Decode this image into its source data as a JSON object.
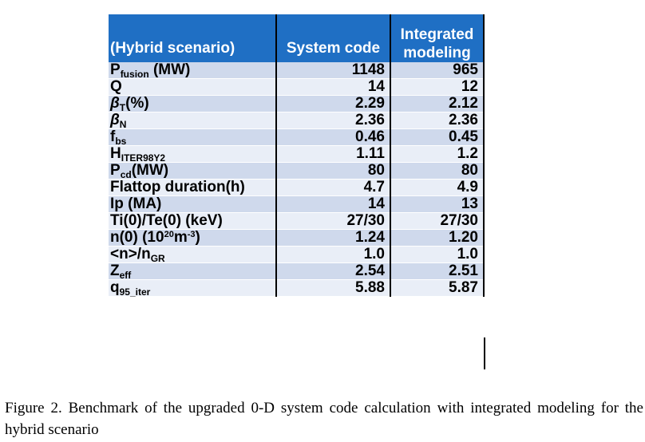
{
  "table": {
    "headers": [
      "(Hybrid scenario)",
      "System code",
      "Integrated modeling"
    ],
    "rows": [
      {
        "label_main": "P",
        "label_sub": "fusion",
        "label_rest": " (MW)",
        "system": "1148",
        "integrated": "965"
      },
      {
        "label_main": "Q",
        "system": "14",
        "integrated": "12"
      },
      {
        "label_main": "β",
        "label_sub": "T",
        "label_rest": "(%)",
        "system": "2.29",
        "integrated": "2.12"
      },
      {
        "label_main": "β",
        "label_sub": "N",
        "system": "2.36",
        "integrated": "2.36"
      },
      {
        "label_main": "f",
        "label_sub": "bs",
        "system": "0.46",
        "integrated": "0.45"
      },
      {
        "label_main": "H",
        "label_sub": "ITER98Y2",
        "system": "1.11",
        "integrated": "1.2"
      },
      {
        "label_main": "P",
        "label_sub": "cd",
        "label_rest": "(MW)",
        "system": "80",
        "integrated": "80"
      },
      {
        "label_main": "Flattop duration(h)",
        "system": "4.7",
        "integrated": "4.9"
      },
      {
        "label_main": "Ip (MA)",
        "system": "14",
        "integrated": "13"
      },
      {
        "label_main": "Ti(0)/Te(0) (keV)",
        "system": "27/30",
        "integrated": "27/30"
      },
      {
        "label_main": "n(0) (10",
        "label_sup": "20",
        "label_rest": "m",
        "label_sup2": "-3",
        "label_rest2": ")",
        "system": "1.24",
        "integrated": "1.20"
      },
      {
        "label_main": "<n>/n",
        "label_sub": "GR",
        "system": "1.0",
        "integrated": "1.0"
      },
      {
        "label_main": "Z",
        "label_sub": "eff",
        "system": "2.54",
        "integrated": "2.51"
      },
      {
        "label_main": "q",
        "label_sub": "95_iter",
        "system": "5.88",
        "integrated": "5.87"
      }
    ]
  },
  "caption": "Figure 2. Benchmark of the upgraded 0-D system code calculation with integrated modeling for the hybrid scenario",
  "colors": {
    "header_bg": "#1f6fc4",
    "row_odd": "#cfd9ec",
    "row_even": "#e9eef7"
  }
}
